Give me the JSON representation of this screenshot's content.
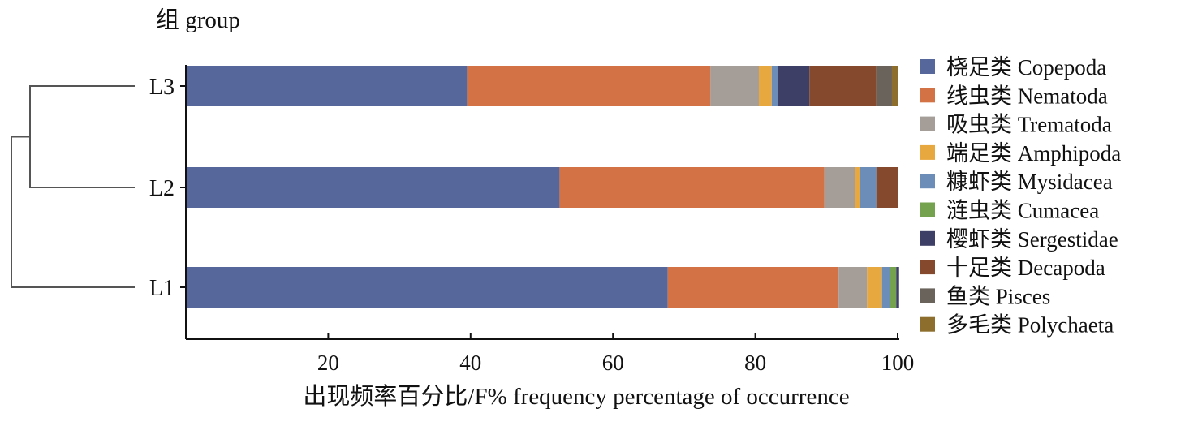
{
  "chart_data": {
    "type": "bar",
    "orientation": "horizontal",
    "stacked": true,
    "ylabel": "组 group",
    "xlabel": "出现频率百分比/F% frequency percentage of occurrence",
    "xlim": [
      0,
      100
    ],
    "xticks": [
      20,
      40,
      60,
      80,
      100
    ],
    "categories": [
      "L3",
      "L2",
      "L1"
    ],
    "legend_position": "right",
    "grid": false,
    "dendrogram": true,
    "series": [
      {
        "name": "桡足类 Copepoda",
        "color": "#56679b",
        "values": [
          39.5,
          52.5,
          67.7
        ]
      },
      {
        "name": "线虫类 Nematoda",
        "color": "#d37345",
        "values": [
          34.2,
          37.2,
          24.0
        ]
      },
      {
        "name": "吸虫类 Trematoda",
        "color": "#a59e98",
        "values": [
          6.8,
          4.3,
          4.0
        ]
      },
      {
        "name": "端足类 Amphipoda",
        "color": "#e8a840",
        "values": [
          1.8,
          0.7,
          2.1
        ]
      },
      {
        "name": "糠虾类 Mysidacea",
        "color": "#6d8db9",
        "values": [
          0.9,
          2.3,
          1.1
        ]
      },
      {
        "name": "涟虫类 Cumacea",
        "color": "#74a24e",
        "values": [
          0,
          0,
          0.9
        ]
      },
      {
        "name": "樱虾类 Sergestidae",
        "color": "#3e3f66",
        "values": [
          4.4,
          0,
          0.4
        ]
      },
      {
        "name": "十足类  Decapoda",
        "color": "#854a2e",
        "values": [
          9.4,
          3.0,
          0
        ]
      },
      {
        "name": "鱼类 Pisces",
        "color": "#6a635c",
        "values": [
          2.2,
          0,
          0
        ]
      },
      {
        "name": "多毛类 Polychaeta",
        "color": "#8d6e2c",
        "values": [
          0.8,
          0,
          0
        ]
      }
    ]
  }
}
